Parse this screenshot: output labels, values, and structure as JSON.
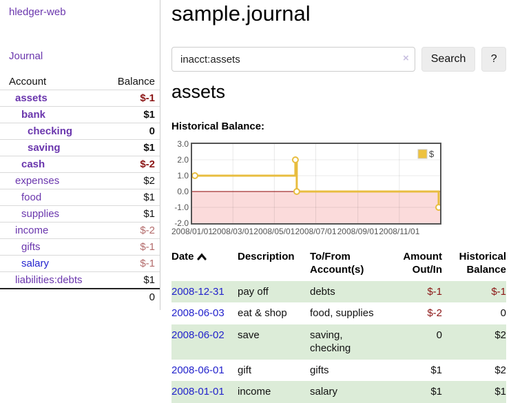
{
  "app_title": "hledger-web",
  "sidebar": {
    "journal_link": "Journal",
    "header": {
      "account": "Account",
      "balance": "Balance"
    },
    "rows": [
      {
        "name": "assets",
        "balance": "$-1"
      },
      {
        "name": "bank",
        "balance": "$1"
      },
      {
        "name": "checking",
        "balance": "0"
      },
      {
        "name": "saving",
        "balance": "$1"
      },
      {
        "name": "cash",
        "balance": "$-2"
      },
      {
        "name": "expenses",
        "balance": "$2"
      },
      {
        "name": "food",
        "balance": "$1"
      },
      {
        "name": "supplies",
        "balance": "$1"
      },
      {
        "name": "income",
        "balance": "$-2"
      },
      {
        "name": "gifts",
        "balance": "$-1"
      },
      {
        "name": "salary",
        "balance": "$-1"
      },
      {
        "name": "liabilities:debts",
        "balance": "$1"
      }
    ],
    "total": "0"
  },
  "header": {
    "title": "sample.journal",
    "search": {
      "value": "inacct:assets",
      "clear_icon": "×",
      "search_button": "Search",
      "help_button": "?"
    }
  },
  "section": {
    "heading": "assets",
    "chart_title": "Historical Balance:"
  },
  "chart_data": {
    "type": "line",
    "title": "Historical Balance of assets",
    "step": true,
    "series": [
      {
        "name": "$",
        "color": "#e8bd3f",
        "points": [
          [
            "2008-01-01",
            1
          ],
          [
            "2008-06-01",
            2
          ],
          [
            "2008-06-03",
            0
          ],
          [
            "2008-12-31",
            -1
          ]
        ]
      }
    ],
    "x_ticks": [
      {
        "label": "2008/01/01",
        "day": 0
      },
      {
        "label": "2008/03/01",
        "day": 60
      },
      {
        "label": "2008/05/01",
        "day": 121
      },
      {
        "label": "2008/07/01",
        "day": 182
      },
      {
        "label": "2008/09/01",
        "day": 244
      },
      {
        "label": "2008/11/01",
        "day": 305
      }
    ],
    "y_ticks": [
      3,
      2,
      1,
      0,
      -1,
      -2
    ],
    "ylim": [
      -2,
      3
    ],
    "x_domain_days": [
      0,
      365
    ],
    "grid": true,
    "grid_color": "#e3e3e3",
    "negative_region_color": "#fbdbdb",
    "zero_line_color": "#8b0000",
    "legend": {
      "label": "$",
      "position": "top-right",
      "swatch_color": "#edc240"
    }
  },
  "register": {
    "headers": {
      "date": "Date",
      "description": "Description",
      "accounts": "To/From Account(s)",
      "amount": "Amount Out/In",
      "balance": "Historical Balance"
    },
    "rows": [
      {
        "date": "2008-12-31",
        "description": "pay off",
        "accounts": "debts",
        "amount": "$-1",
        "balance": "$-1"
      },
      {
        "date": "2008-06-03",
        "description": "eat & shop",
        "accounts": "food, supplies",
        "amount": "$-2",
        "balance": "0"
      },
      {
        "date": "2008-06-02",
        "description": "save",
        "accounts": "saving, checking",
        "amount": "0",
        "balance": "$2"
      },
      {
        "date": "2008-06-01",
        "description": "gift",
        "accounts": "gifts",
        "amount": "$1",
        "balance": "$2"
      },
      {
        "date": "2008-01-01",
        "description": "income",
        "accounts": "salary",
        "amount": "$1",
        "balance": "$1"
      }
    ]
  }
}
